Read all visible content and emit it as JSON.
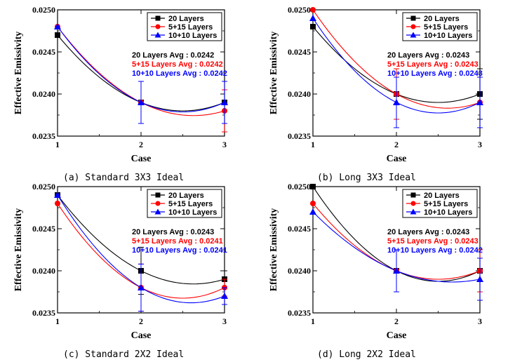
{
  "colors": {
    "s20": "#000000",
    "s515": "#ff0000",
    "s1010": "#0000ff",
    "frame": "#000000"
  },
  "chart_data": [
    {
      "type": "line",
      "caption": "(a)  Standard  3X3  Ideal",
      "xlabel": "Case",
      "ylabel": "Effective Emissivity",
      "x": [
        1,
        2,
        3
      ],
      "xticks": [
        "1",
        "2",
        "3"
      ],
      "ylim": [
        0.0235,
        0.025
      ],
      "yticks": [
        "0.0235",
        "0.0240",
        "0.0245",
        "0.0250"
      ],
      "legend_position": "top-right",
      "series": [
        {
          "name": "20 Layers",
          "color": "#000000",
          "marker": "square",
          "values": [
            0.0247,
            0.0239,
            0.0239
          ],
          "error": [
            0,
            0.00025,
            0.00025
          ]
        },
        {
          "name": "5+15 Layers",
          "color": "#ff0000",
          "marker": "circle",
          "values": [
            0.0248,
            0.0239,
            0.0238
          ],
          "error": [
            0,
            0.00025,
            0.00025
          ]
        },
        {
          "name": "10+10 Layers",
          "color": "#0000ff",
          "marker": "triangle",
          "values": [
            0.0248,
            0.0239,
            0.0239
          ],
          "error": [
            0,
            0.00025,
            0.00025
          ]
        }
      ],
      "annotations": [
        {
          "text": "20 Layers Avg : 0.0242",
          "color": "#000000"
        },
        {
          "text": "5+15 Layers Avg : 0.0242",
          "color": "#ff0000"
        },
        {
          "text": "10+10 Layers Avg : 0.0242",
          "color": "#0000ff"
        }
      ]
    },
    {
      "type": "line",
      "caption": "(b)  Long  3X3  Ideal",
      "xlabel": "Case",
      "ylabel": "Effective Emissivity",
      "x": [
        1,
        2,
        3
      ],
      "xticks": [
        "1",
        "2",
        "3"
      ],
      "ylim": [
        0.0235,
        0.025
      ],
      "yticks": [
        "0.0235",
        "0.0240",
        "0.0245",
        "0.0250"
      ],
      "legend_position": "top-right",
      "series": [
        {
          "name": "20 Layers",
          "color": "#000000",
          "marker": "square",
          "values": [
            0.0248,
            0.024,
            0.024
          ],
          "error": [
            0,
            0.0003,
            0.0003
          ]
        },
        {
          "name": "5+15 Layers",
          "color": "#ff0000",
          "marker": "circle",
          "values": [
            0.025,
            0.024,
            0.0239
          ],
          "error": [
            0,
            0.0003,
            0.0003
          ]
        },
        {
          "name": "10+10 Layers",
          "color": "#0000ff",
          "marker": "triangle",
          "values": [
            0.0249,
            0.0239,
            0.0239
          ],
          "error": [
            0,
            0.0003,
            0.0003
          ]
        }
      ],
      "annotations": [
        {
          "text": "20 Layers Avg : 0.0243",
          "color": "#000000"
        },
        {
          "text": "5+15 Layers Avg : 0.0243",
          "color": "#ff0000"
        },
        {
          "text": "10+10 Layers Avg : 0.0243",
          "color": "#0000ff"
        }
      ]
    },
    {
      "type": "line",
      "caption": "(c)  Standard  2X2  Ideal",
      "xlabel": "Case",
      "ylabel": "Effective Emissivity",
      "x": [
        1,
        2,
        3
      ],
      "xticks": [
        "1",
        "2",
        "3"
      ],
      "ylim": [
        0.0235,
        0.025
      ],
      "yticks": [
        "0.0235",
        "0.0240",
        "0.0245",
        "0.0250"
      ],
      "legend_position": "top-right",
      "series": [
        {
          "name": "20 Layers",
          "color": "#000000",
          "marker": "square",
          "values": [
            0.0249,
            0.024,
            0.0239
          ],
          "error": [
            0,
            0.00028,
            0.0001
          ]
        },
        {
          "name": "5+15 Layers",
          "color": "#ff0000",
          "marker": "circle",
          "values": [
            0.0248,
            0.0238,
            0.0238
          ],
          "error": [
            0,
            0.00028,
            0.0001
          ]
        },
        {
          "name": "10+10 Layers",
          "color": "#0000ff",
          "marker": "triangle",
          "values": [
            0.0249,
            0.0238,
            0.0237
          ],
          "error": [
            0,
            0.00028,
            0.0001
          ]
        }
      ],
      "annotations": [
        {
          "text": "20 Layers Avg : 0.0243",
          "color": "#000000"
        },
        {
          "text": "5+15 Layers Avg : 0.0241",
          "color": "#ff0000"
        },
        {
          "text": "10+10 Layers Avg : 0.0241",
          "color": "#0000ff"
        }
      ]
    },
    {
      "type": "line",
      "caption": "(d)  Long  2X2  Ideal",
      "xlabel": "Case",
      "ylabel": "Effective Emissivity",
      "x": [
        1,
        2,
        3
      ],
      "xticks": [
        "1",
        "2",
        "3"
      ],
      "ylim": [
        0.0235,
        0.025
      ],
      "yticks": [
        "0.0235",
        "0.0240",
        "0.0245",
        "0.0250"
      ],
      "legend_position": "top-right",
      "series": [
        {
          "name": "20 Layers",
          "color": "#000000",
          "marker": "square",
          "values": [
            0.025,
            0.024,
            0.024
          ],
          "error": [
            0,
            0.00025,
            0.00025
          ]
        },
        {
          "name": "5+15 Layers",
          "color": "#ff0000",
          "marker": "circle",
          "values": [
            0.0248,
            0.024,
            0.024
          ],
          "error": [
            0,
            0.00025,
            0.00025
          ]
        },
        {
          "name": "10+10 Layers",
          "color": "#0000ff",
          "marker": "triangle",
          "values": [
            0.0247,
            0.024,
            0.0239
          ],
          "error": [
            0,
            0.00025,
            0.00025
          ]
        }
      ],
      "annotations": [
        {
          "text": "20 Layers Avg : 0.0243",
          "color": "#000000"
        },
        {
          "text": "5+15 Layers Avg : 0.0243",
          "color": "#ff0000"
        },
        {
          "text": "10+10 Layers Avg : 0.0242",
          "color": "#0000ff"
        }
      ]
    }
  ]
}
